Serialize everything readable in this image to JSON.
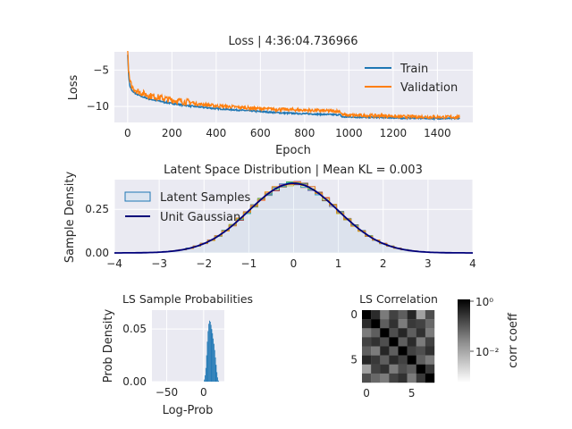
{
  "chart_data": [
    {
      "id": "loss",
      "type": "line",
      "title": "Loss | 4:36:04.736966",
      "xlabel": "Epoch",
      "ylabel": "Loss",
      "xlim": [
        -60,
        1560
      ],
      "ylim": [
        -12.2,
        -2.5
      ],
      "xticks": [
        0,
        200,
        400,
        600,
        800,
        1000,
        1200,
        1400
      ],
      "yticks": [
        -5,
        -10
      ],
      "ytick_labels": [
        "−5",
        "−10"
      ],
      "grid": true,
      "legend_position": "top-right",
      "series": [
        {
          "name": "Train",
          "color": "#1f77b4",
          "x": [
            0,
            5,
            10,
            20,
            40,
            60,
            100,
            150,
            200,
            300,
            400,
            500,
            600,
            700,
            800,
            900,
            960,
            970,
            1000,
            1100,
            1200,
            1210,
            1300,
            1400,
            1500
          ],
          "values": [
            -2.8,
            -6.0,
            -7.2,
            -7.9,
            -8.3,
            -8.6,
            -9.0,
            -9.3,
            -9.6,
            -10.0,
            -10.3,
            -10.5,
            -10.7,
            -10.9,
            -11.0,
            -11.1,
            -11.15,
            -11.45,
            -11.45,
            -11.5,
            -11.55,
            -11.6,
            -11.6,
            -11.65,
            -11.65
          ]
        },
        {
          "name": "Validation",
          "color": "#ff7f0e",
          "x": [
            0,
            5,
            10,
            20,
            40,
            60,
            100,
            150,
            200,
            300,
            400,
            500,
            600,
            700,
            800,
            900,
            960,
            970,
            1000,
            1100,
            1200,
            1210,
            1300,
            1400,
            1500
          ],
          "values": [
            -2.6,
            -5.6,
            -6.8,
            -7.5,
            -8.0,
            -8.3,
            -8.7,
            -9.0,
            -9.3,
            -9.7,
            -10.0,
            -10.2,
            -10.4,
            -10.5,
            -10.6,
            -10.7,
            -10.75,
            -11.25,
            -11.3,
            -11.35,
            -11.4,
            -11.5,
            -11.5,
            -11.55,
            -11.55
          ]
        }
      ]
    },
    {
      "id": "latent",
      "type": "area",
      "title": "Latent Space Distribution | Mean KL = 0.003",
      "xlabel": "",
      "ylabel": "Sample Density",
      "xlim": [
        -4,
        4
      ],
      "ylim": [
        0,
        0.42
      ],
      "xticks": [
        -4,
        -3,
        -2,
        -1,
        0,
        1,
        2,
        3,
        4
      ],
      "xtick_labels": [
        "−4",
        "−3",
        "−2",
        "−1",
        "0",
        "1",
        "2",
        "3",
        "4"
      ],
      "yticks": [
        0.0,
        0.25
      ],
      "ytick_labels": [
        "0.00",
        "0.25"
      ],
      "grid": true,
      "legend_position": "top-left",
      "series": [
        {
          "name": "Latent Samples",
          "kind": "step-histograms",
          "color": "#1f77b4"
        },
        {
          "name": "Unit Gaussian",
          "kind": "pdf",
          "color": "#00007a"
        }
      ],
      "extra_colors": [
        "#d62728",
        "#e377c2",
        "#2ca02c",
        "#9467bd",
        "#8c564b",
        "#17becf",
        "#bcbd22",
        "#ff7f0e"
      ]
    },
    {
      "id": "probs",
      "type": "bar",
      "title": "LS Sample Probabilities",
      "xlabel": "Log-Prob",
      "ylabel": "Prob Density",
      "xlim": [
        -70,
        28
      ],
      "ylim": [
        0,
        0.068
      ],
      "xticks": [
        -50,
        0
      ],
      "xtick_labels": [
        "−50",
        "0"
      ],
      "yticks": [
        0.0,
        0.05
      ],
      "ytick_labels": [
        "0.00",
        "0.05"
      ],
      "color": "#1f77b4",
      "bin_centers": [
        1,
        2,
        3,
        4,
        5,
        6,
        7,
        8,
        9,
        10,
        11,
        12,
        13,
        14,
        15,
        16,
        17,
        18,
        19,
        20
      ],
      "values": [
        0.002,
        0.006,
        0.013,
        0.025,
        0.038,
        0.048,
        0.055,
        0.058,
        0.057,
        0.054,
        0.05,
        0.046,
        0.041,
        0.036,
        0.03,
        0.023,
        0.016,
        0.009,
        0.004,
        0.001
      ]
    },
    {
      "id": "corr",
      "type": "heatmap",
      "title": "LS Correlation",
      "xticks": [
        0,
        5
      ],
      "yticks": [
        0,
        5
      ],
      "colorbar_label": "corr coeff",
      "colorbar_ticks": [
        "10⁰",
        "10⁻²"
      ],
      "colorscale": "log, white (low) to black (high)",
      "matrix": [
        [
          1.0,
          0.35,
          0.05,
          0.2,
          0.1,
          0.4,
          0.02,
          0.15
        ],
        [
          0.35,
          1.0,
          0.1,
          0.3,
          0.05,
          0.25,
          0.2,
          0.08
        ],
        [
          0.05,
          0.1,
          1.0,
          0.15,
          0.4,
          0.1,
          0.3,
          0.05
        ],
        [
          0.2,
          0.3,
          0.15,
          1.0,
          0.1,
          0.35,
          0.05,
          0.2
        ],
        [
          0.1,
          0.05,
          0.4,
          0.1,
          1.0,
          0.2,
          0.15,
          0.3
        ],
        [
          0.4,
          0.25,
          0.1,
          0.35,
          0.2,
          1.0,
          0.1,
          0.05
        ],
        [
          0.02,
          0.2,
          0.3,
          0.05,
          0.15,
          0.1,
          1.0,
          0.25
        ],
        [
          0.15,
          0.08,
          0.05,
          0.2,
          0.3,
          0.05,
          0.25,
          1.0
        ]
      ]
    }
  ]
}
